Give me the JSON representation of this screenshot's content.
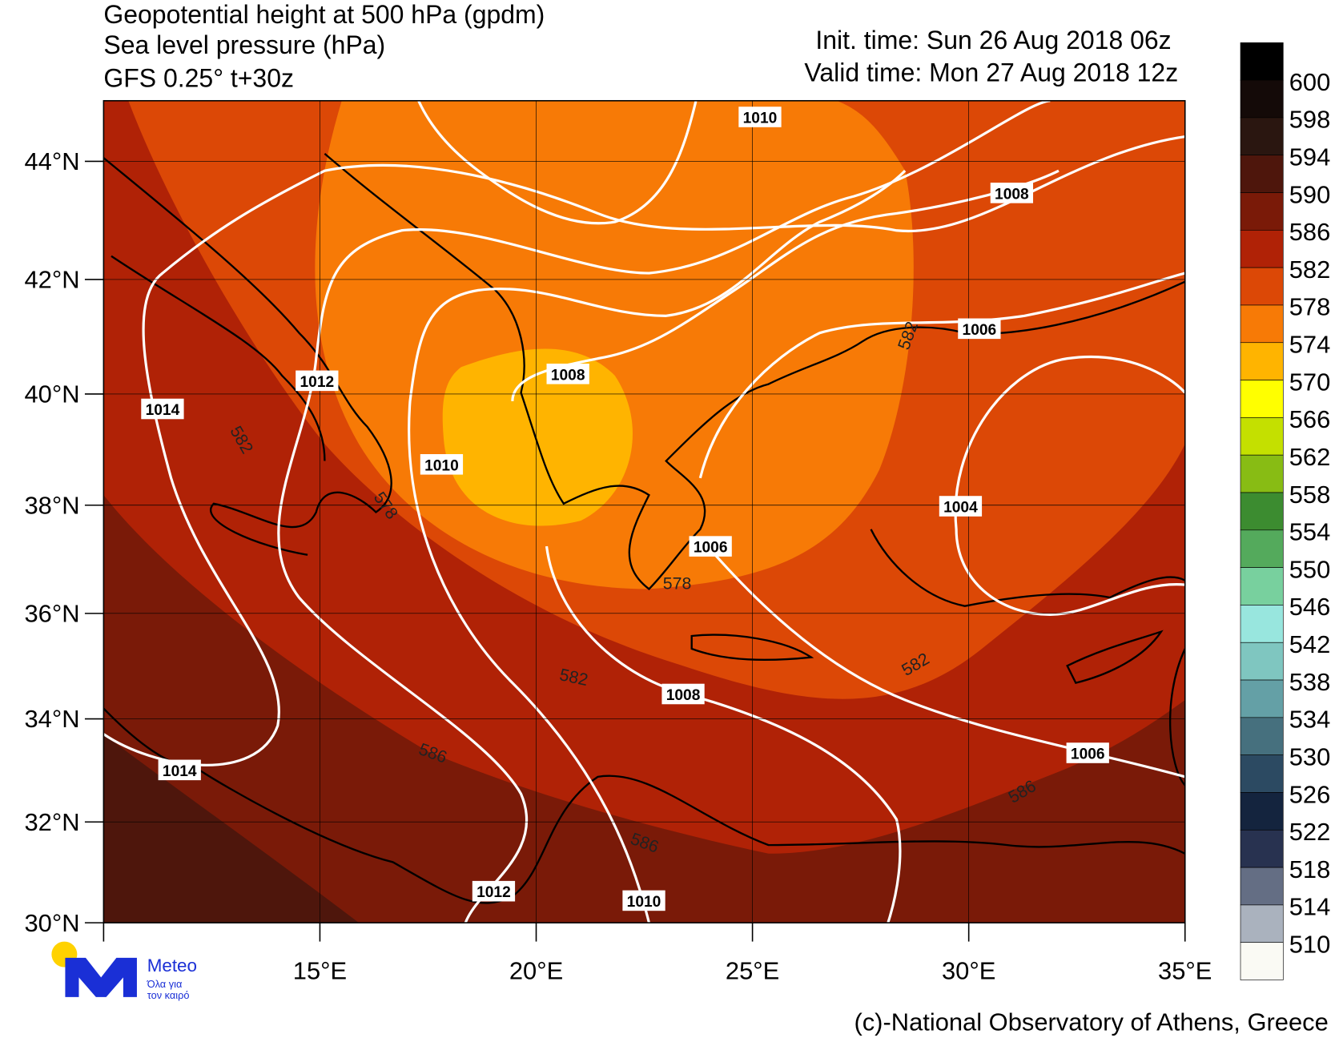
{
  "header": {
    "title_lines": [
      "Geopotential height at 500 hPa (gpdm)",
      "Sea level pressure (hPa)",
      "GFS 0.25° t+30z"
    ],
    "init_time": "Init. time: Sun 26 Aug 2018 06z",
    "valid_time": "Valid time: Mon 27 Aug 2018 12z"
  },
  "map": {
    "lon_range": [
      10,
      35
    ],
    "lat_range": [
      30,
      45
    ],
    "lat_ticks": [
      {
        "value": 30,
        "label": "30°N"
      },
      {
        "value": 32,
        "label": "32°N"
      },
      {
        "value": 34,
        "label": "34°N"
      },
      {
        "value": 36,
        "label": "36°N"
      },
      {
        "value": 38,
        "label": "38°N"
      },
      {
        "value": 40,
        "label": "40°N"
      },
      {
        "value": 42,
        "label": "42°N"
      },
      {
        "value": 44,
        "label": "44°N"
      }
    ],
    "lon_ticks": [
      {
        "value": 15,
        "label": "15°E"
      },
      {
        "value": 20,
        "label": "20°E"
      },
      {
        "value": 25,
        "label": "25°E"
      },
      {
        "value": 30,
        "label": "30°E"
      },
      {
        "value": 35,
        "label": "35°E"
      }
    ],
    "isobar_labels": [
      1010,
      1008,
      1006,
      1012,
      1008,
      1014,
      1010,
      1004,
      1006,
      1008,
      1006,
      1014,
      1012,
      1010
    ],
    "height_labels": [
      582,
      578,
      582,
      586,
      586,
      582,
      586,
      578,
      582
    ]
  },
  "colorbar": {
    "levels": [
      600,
      598,
      594,
      590,
      586,
      582,
      578,
      574,
      570,
      566,
      562,
      558,
      554,
      550,
      546,
      542,
      538,
      534,
      530,
      526,
      522,
      518,
      514,
      510
    ],
    "colors": [
      "#000000",
      "#140a08",
      "#2a1610",
      "#4e160c",
      "#7a1a08",
      "#b02206",
      "#dc4806",
      "#f77a06",
      "#ffb400",
      "#ffff00",
      "#c4e000",
      "#88bc14",
      "#3c8c30",
      "#54aa5c",
      "#78d09e",
      "#98e6de",
      "#7fc6c0",
      "#64a0a6",
      "#46707e",
      "#2c4a62",
      "#14243e",
      "#283250",
      "#646e84",
      "#aab2be",
      "#fafaf4"
    ]
  },
  "logo": {
    "name": "Meteo",
    "slogan_lines": [
      "Όλα για",
      "τον καιρό"
    ]
  },
  "credit": "(c)-National Observatory of Athens, Greece"
}
